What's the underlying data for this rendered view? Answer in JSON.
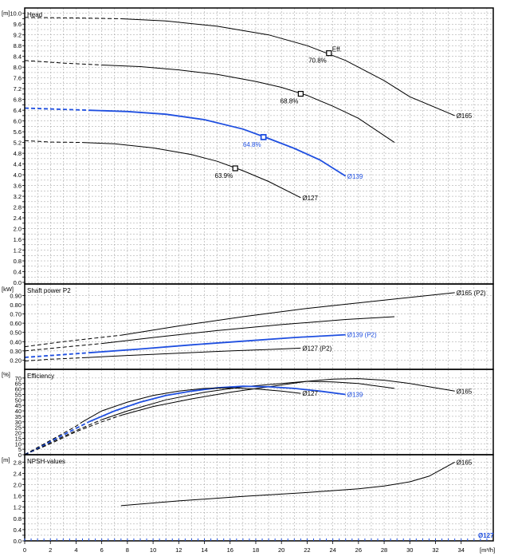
{
  "colors": {
    "highlight": "#1f4fe0",
    "curve": "#000000",
    "grid": "#9a9a9a"
  },
  "chart_data": {
    "type": "line",
    "x_unit": "[m³/h]",
    "x_ticks": [
      0,
      2,
      4,
      6,
      8,
      10,
      12,
      14,
      16,
      18,
      20,
      22,
      24,
      26,
      28,
      30,
      32,
      34
    ],
    "xlim": [
      0,
      36.5
    ],
    "panels": [
      {
        "id": "head",
        "title": "Head",
        "unit": "[m]",
        "ylim": [
          0,
          10.2
        ],
        "y_ticks": [
          0.0,
          0.2,
          0.4,
          0.6,
          0.8,
          1.0,
          1.2,
          1.4,
          1.6,
          1.8,
          2.0,
          2.2,
          2.4,
          2.6,
          2.8,
          3.0,
          3.2,
          3.4,
          3.6,
          3.8,
          4.0,
          4.2,
          4.4,
          4.6,
          4.8,
          5.0,
          5.2,
          5.4,
          5.6,
          5.8,
          6.0,
          6.2,
          6.4,
          6.6,
          6.8,
          7.0,
          7.2,
          7.4,
          7.6,
          7.8,
          8.0,
          8.2,
          8.4,
          8.6,
          8.8,
          9.0,
          9.2,
          9.4,
          9.6,
          9.8,
          10.0
        ],
        "y_tick_labels": [
          "0.0",
          "",
          "0.4",
          "",
          "0.8",
          "",
          "1.2",
          "",
          "1.6",
          "",
          "2.0",
          "",
          "2.4",
          "",
          "2.8",
          "",
          "3.2",
          "",
          "3.6",
          "",
          "4.0",
          "",
          "4.4",
          "",
          "4.8",
          "",
          "5.2",
          "",
          "5.6",
          "",
          "6.0",
          "",
          "6.4",
          "",
          "6.8",
          "",
          "7.2",
          "",
          "7.6",
          "",
          "8.0",
          "",
          "8.4",
          "",
          "8.8",
          "",
          "9.2",
          "",
          "9.6",
          "",
          "10.0"
        ],
        "series": [
          {
            "name": "Ø165",
            "highlight": false,
            "dash_until": 7.5,
            "x": [
              0,
              4,
              7.5,
              11,
              15,
              19,
              22,
              25,
              28,
              30,
              33.5
            ],
            "y": [
              9.85,
              9.83,
              9.8,
              9.72,
              9.52,
              9.2,
              8.8,
              8.25,
              7.5,
              6.9,
              6.2
            ]
          },
          {
            "name": "",
            "highlight": false,
            "dash_until": 6,
            "x": [
              0,
              3,
              6,
              9,
              12,
              15,
              18,
              20,
              22,
              24,
              26,
              28.8
            ],
            "y": [
              8.25,
              8.15,
              8.08,
              8.02,
              7.9,
              7.73,
              7.47,
              7.25,
              6.95,
              6.55,
              6.1,
              5.2
            ]
          },
          {
            "name": "Ø139",
            "highlight": true,
            "dash_until": 5,
            "x": [
              0,
              3,
              5,
              8,
              11,
              14,
              17,
              19,
              21,
              23,
              25
            ],
            "y": [
              6.48,
              6.43,
              6.4,
              6.35,
              6.25,
              6.05,
              5.7,
              5.35,
              4.98,
              4.55,
              3.95
            ]
          },
          {
            "name": "Ø127",
            "highlight": false,
            "dash_until": 4.5,
            "x": [
              0,
              2,
              4.5,
              7,
              10,
              13,
              15,
              17,
              19,
              21.5
            ],
            "y": [
              5.27,
              5.22,
              5.2,
              5.15,
              5.0,
              4.75,
              4.5,
              4.15,
              3.75,
              3.15
            ]
          }
        ],
        "markers": [
          {
            "x": 23.7,
            "y": 8.52,
            "label": "70.8%",
            "extra": "Eff.",
            "highlight": false
          },
          {
            "x": 21.5,
            "y": 7.01,
            "label": "68.8%",
            "extra": "",
            "highlight": false
          },
          {
            "x": 18.6,
            "y": 5.4,
            "label": "64.8%",
            "extra": "",
            "highlight": true
          },
          {
            "x": 16.4,
            "y": 4.24,
            "label": "63.9%",
            "extra": "",
            "highlight": false
          }
        ]
      },
      {
        "id": "power",
        "title": "Shaft power P2",
        "unit": "[kW]",
        "ylim": [
          0.1,
          0.99
        ],
        "y_ticks": [
          0.2,
          0.3,
          0.4,
          0.5,
          0.6,
          0.7,
          0.8,
          0.9
        ],
        "y_tick_labels": [
          "0.20",
          "0.30",
          "0.40",
          "0.50",
          "0.60",
          "0.70",
          "0.80",
          "0.90"
        ],
        "series": [
          {
            "name": "Ø165 (P2)",
            "highlight": false,
            "dash_until": 7.5,
            "x": [
              0,
              3,
              7.5,
              12,
              17,
              22,
              28,
              33.5
            ],
            "y": [
              0.345,
              0.4,
              0.47,
              0.57,
              0.67,
              0.76,
              0.85,
              0.93
            ]
          },
          {
            "name": "",
            "highlight": false,
            "dash_until": 6,
            "x": [
              0,
              3,
              6,
              10,
              15,
              20,
              25,
              28.8
            ],
            "y": [
              0.3,
              0.34,
              0.38,
              0.445,
              0.52,
              0.585,
              0.64,
              0.67
            ]
          },
          {
            "name": "Ø139 (P2)",
            "highlight": true,
            "dash_until": 5,
            "x": [
              0,
              2.5,
              5,
              9,
              13,
              17,
              21,
              25
            ],
            "y": [
              0.23,
              0.255,
              0.28,
              0.32,
              0.365,
              0.405,
              0.445,
              0.475
            ]
          },
          {
            "name": "Ø127 (P2)",
            "highlight": false,
            "dash_until": 4.5,
            "x": [
              0,
              2,
              4.5,
              8,
              12,
              16,
              19,
              21.5
            ],
            "y": [
              0.19,
              0.21,
              0.225,
              0.25,
              0.275,
              0.3,
              0.315,
              0.33
            ]
          }
        ],
        "markers": []
      },
      {
        "id": "efficiency",
        "title": "Efficiency",
        "unit": "[%]",
        "ylim": [
          0,
          75
        ],
        "y_ticks": [
          0,
          5,
          10,
          15,
          20,
          25,
          30,
          35,
          40,
          45,
          50,
          55,
          60,
          65,
          70
        ],
        "y_tick_labels": [
          "0",
          "5",
          "10",
          "15",
          "20",
          "25",
          "30",
          "35",
          "40",
          "45",
          "50",
          "55",
          "60",
          "65",
          "70"
        ],
        "series": [
          {
            "name": "Ø165",
            "highlight": false,
            "dash_until": 7.5,
            "x": [
              0,
              2,
              4,
              6,
              7.5,
              10,
              13,
              16,
              19,
              22,
              24,
              26,
              28,
              30,
              33.5
            ],
            "y": [
              0,
              10,
              21,
              30,
              36,
              44,
              51,
              57,
              62,
              67,
              69,
              69.5,
              68,
              65,
              58
            ]
          },
          {
            "name": "",
            "highlight": false,
            "dash_until": 6,
            "x": [
              0,
              2,
              4,
              6,
              8,
              11,
              14,
              17,
              20,
              22,
              24,
              26,
              28.8
            ],
            "y": [
              0,
              11,
              22,
              32,
              40,
              50,
              57,
              62,
              65,
              67,
              66.5,
              65,
              60.5
            ]
          },
          {
            "name": "Ø139",
            "highlight": true,
            "dash_until": 5,
            "x": [
              0,
              2,
              4,
              5,
              7,
              9,
              11,
              13,
              15,
              17,
              19,
              21,
              23,
              25
            ],
            "y": [
              0,
              12,
              24,
              30,
              40,
              48,
              54,
              58,
              61,
              62.5,
              62,
              60.5,
              58,
              55
            ]
          },
          {
            "name": "Ø127",
            "highlight": false,
            "dash_until": 4.5,
            "x": [
              0,
              2,
              4,
              4.5,
              6,
              8,
              10,
              12,
              14,
              16,
              18,
              20,
              21.5
            ],
            "y": [
              0,
              13,
              26,
              30,
              40,
              48,
              54,
              58,
              60.5,
              61,
              60,
              58,
              56
            ]
          }
        ],
        "markers": []
      },
      {
        "id": "npsh",
        "title": "NPSH-values",
        "unit": "[m]",
        "ylim": [
          0,
          2.95
        ],
        "y_ticks": [
          0.0,
          0.2,
          0.4,
          0.6,
          0.8,
          1.0,
          1.2,
          1.4,
          1.6,
          1.8,
          2.0,
          2.2,
          2.4,
          2.6,
          2.8
        ],
        "y_tick_labels": [
          "0.0",
          "",
          "0.4",
          "",
          "0.8",
          "",
          "1.2",
          "",
          "1.6",
          "",
          "2.0",
          "",
          "2.4",
          "",
          "2.8"
        ],
        "series": [
          {
            "name": "Ø165",
            "highlight": false,
            "dash_until": 0,
            "x": [
              7.5,
              12,
              17,
              22,
              26,
              28,
              30,
              31.5,
              33.5
            ],
            "y": [
              1.25,
              1.42,
              1.58,
              1.72,
              1.85,
              1.95,
              2.1,
              2.3,
              2.8
            ]
          },
          {
            "name": "Ø127",
            "highlight": true,
            "dash_until": 0,
            "x": [],
            "y": []
          }
        ],
        "markers": []
      }
    ]
  }
}
